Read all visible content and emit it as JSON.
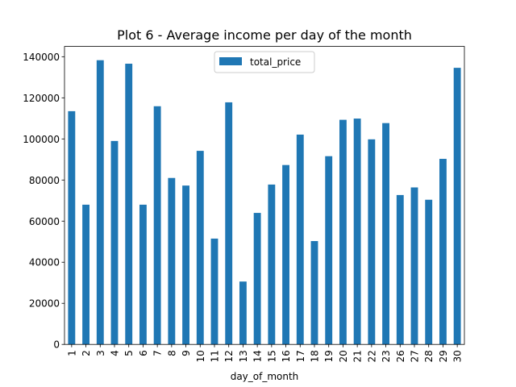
{
  "chart_data": {
    "type": "bar",
    "title": "Plot 6 - Average income per day of the month",
    "xlabel": "day_of_month",
    "ylabel": "",
    "categories": [
      "1",
      "2",
      "3",
      "4",
      "5",
      "6",
      "7",
      "8",
      "9",
      "10",
      "11",
      "12",
      "13",
      "14",
      "15",
      "16",
      "17",
      "18",
      "19",
      "20",
      "21",
      "22",
      "23",
      "26",
      "27",
      "28",
      "29",
      "30"
    ],
    "series": [
      {
        "name": "total_price",
        "color": "#1f77b4",
        "values": [
          113500,
          68000,
          138300,
          99000,
          136600,
          68000,
          115900,
          81000,
          77300,
          94200,
          51500,
          117800,
          30600,
          64000,
          77800,
          87300,
          102100,
          50300,
          91600,
          109300,
          109900,
          99800,
          107700,
          72700,
          76400,
          70400,
          90300,
          134600
        ]
      }
    ],
    "ylim": [
      0,
      145000
    ],
    "yticks": [
      0,
      20000,
      40000,
      60000,
      80000,
      100000,
      120000,
      140000
    ],
    "grid": false,
    "legend_position": "upper center"
  }
}
